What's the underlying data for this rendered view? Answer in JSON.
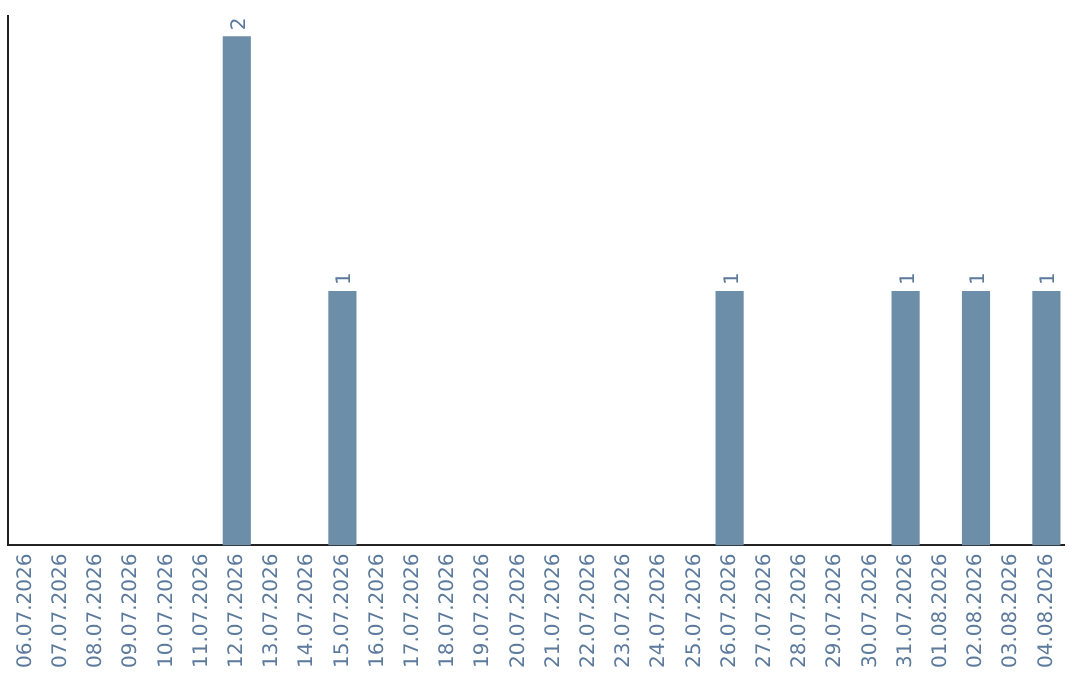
{
  "chart_data": {
    "type": "bar",
    "categories": [
      "06.07.2026",
      "07.07.2026",
      "08.07.2026",
      "09.07.2026",
      "10.07.2026",
      "11.07.2026",
      "12.07.2026",
      "13.07.2026",
      "14.07.2026",
      "15.07.2026",
      "16.07.2026",
      "17.07.2026",
      "18.07.2026",
      "19.07.2026",
      "20.07.2026",
      "21.07.2026",
      "22.07.2026",
      "23.07.2026",
      "24.07.2026",
      "25.07.2026",
      "26.07.2026",
      "27.07.2026",
      "28.07.2026",
      "29.07.2026",
      "30.07.2026",
      "31.07.2026",
      "01.08.2026",
      "02.08.2026",
      "03.08.2026",
      "04.08.2026"
    ],
    "values": [
      0,
      0,
      0,
      0,
      0,
      0,
      2,
      0,
      0,
      1,
      0,
      0,
      0,
      0,
      0,
      0,
      0,
      0,
      0,
      0,
      1,
      0,
      0,
      0,
      0,
      1,
      0,
      1,
      0,
      1
    ],
    "value_labels": [
      null,
      null,
      null,
      null,
      null,
      null,
      "2",
      null,
      null,
      "1",
      null,
      null,
      null,
      null,
      null,
      null,
      null,
      null,
      null,
      null,
      "1",
      null,
      null,
      null,
      null,
      "1",
      null,
      "1",
      null,
      "1"
    ],
    "color": "#6d8ea9",
    "ylim": [
      0,
      2.08
    ],
    "tick_labels": "x",
    "grid": false,
    "legend": false
  }
}
